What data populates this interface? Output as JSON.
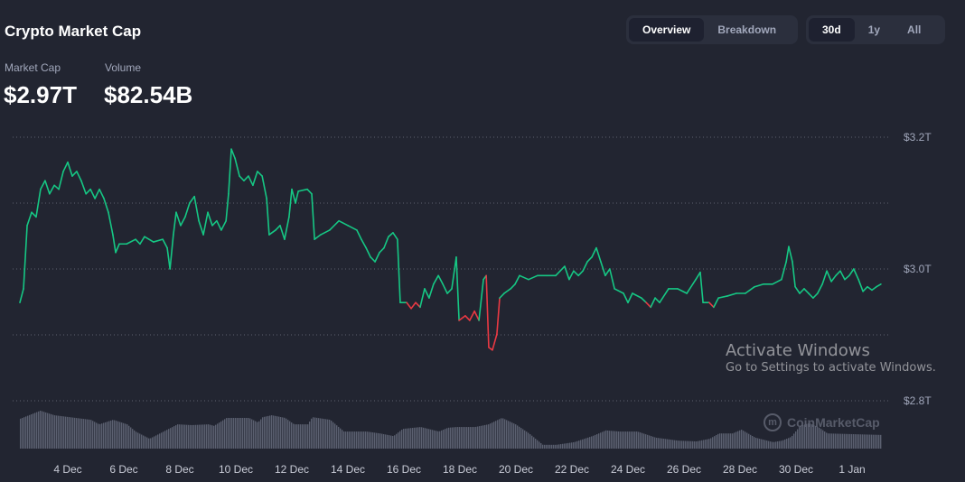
{
  "header": {
    "title": "Crypto Market Cap",
    "market_cap_label": "Market Cap",
    "market_cap_value": "$2.97T",
    "volume_label": "Volume",
    "volume_value": "$82.54B"
  },
  "view_toggle": {
    "options": [
      "Overview",
      "Breakdown"
    ],
    "selected": "Overview"
  },
  "range_toggle": {
    "options": [
      "30d",
      "1y",
      "All"
    ],
    "selected": "30d"
  },
  "watermark": "CoinMarketCap",
  "os_overlay": {
    "line1": "Activate Windows",
    "line2": "Go to Settings to activate Windows."
  },
  "colors": {
    "up": "#16c784",
    "down": "#ea3943",
    "volume": "#5b6070",
    "grid": "#5d6170",
    "background": "#222531"
  },
  "chart_data": {
    "type": "line",
    "title": "",
    "xlabel": "",
    "ylabel": "",
    "x_unit": "day of December (values above 31 are January)",
    "y_unit": "USD trillions",
    "ylim": [
      2.8,
      3.2
    ],
    "grid": true,
    "yticks": [
      {
        "value": 3.2,
        "label": "$3.2T"
      },
      {
        "value": 3.1,
        "label": ""
      },
      {
        "value": 3.0,
        "label": "$3.0T"
      },
      {
        "value": 2.9,
        "label": ""
      },
      {
        "value": 2.8,
        "label": "$2.8T"
      }
    ],
    "xticks": [
      {
        "day": 4,
        "label": "4 Dec"
      },
      {
        "day": 6,
        "label": "6 Dec"
      },
      {
        "day": 8,
        "label": "8 Dec"
      },
      {
        "day": 10,
        "label": "10 Dec"
      },
      {
        "day": 12,
        "label": "12 Dec"
      },
      {
        "day": 14,
        "label": "14 Dec"
      },
      {
        "day": 16,
        "label": "16 Dec"
      },
      {
        "day": 18,
        "label": "18 Dec"
      },
      {
        "day": 20,
        "label": "20 Dec"
      },
      {
        "day": 22,
        "label": "22 Dec"
      },
      {
        "day": 24,
        "label": "24 Dec"
      },
      {
        "day": 26,
        "label": "26 Dec"
      },
      {
        "day": 28,
        "label": "28 Dec"
      },
      {
        "day": 30,
        "label": "30 Dec"
      },
      {
        "day": 32,
        "label": "1 Jan"
      }
    ],
    "market_cap": [
      [
        2.29,
        2.949
      ],
      [
        2.42,
        2.97
      ],
      [
        2.55,
        3.066
      ],
      [
        2.71,
        3.086
      ],
      [
        2.87,
        3.079
      ],
      [
        3.03,
        3.121
      ],
      [
        3.19,
        3.134
      ],
      [
        3.35,
        3.114
      ],
      [
        3.52,
        3.127
      ],
      [
        3.68,
        3.121
      ],
      [
        3.84,
        3.148
      ],
      [
        4.0,
        3.162
      ],
      [
        4.16,
        3.141
      ],
      [
        4.32,
        3.148
      ],
      [
        4.48,
        3.134
      ],
      [
        4.65,
        3.114
      ],
      [
        4.81,
        3.121
      ],
      [
        4.97,
        3.107
      ],
      [
        5.13,
        3.121
      ],
      [
        5.29,
        3.107
      ],
      [
        5.45,
        3.086
      ],
      [
        5.61,
        3.052
      ],
      [
        5.71,
        3.025
      ],
      [
        5.84,
        3.038
      ],
      [
        6.1,
        3.038
      ],
      [
        6.42,
        3.045
      ],
      [
        6.58,
        3.038
      ],
      [
        6.74,
        3.049
      ],
      [
        7.06,
        3.041
      ],
      [
        7.39,
        3.045
      ],
      [
        7.55,
        3.032
      ],
      [
        7.65,
        3.0
      ],
      [
        7.77,
        3.052
      ],
      [
        7.87,
        3.086
      ],
      [
        8.03,
        3.066
      ],
      [
        8.19,
        3.079
      ],
      [
        8.35,
        3.1
      ],
      [
        8.52,
        3.11
      ],
      [
        8.68,
        3.073
      ],
      [
        8.84,
        3.052
      ],
      [
        9.0,
        3.086
      ],
      [
        9.16,
        3.066
      ],
      [
        9.32,
        3.073
      ],
      [
        9.48,
        3.059
      ],
      [
        9.65,
        3.073
      ],
      [
        9.74,
        3.114
      ],
      [
        9.84,
        3.182
      ],
      [
        9.97,
        3.168
      ],
      [
        10.13,
        3.141
      ],
      [
        10.29,
        3.134
      ],
      [
        10.45,
        3.141
      ],
      [
        10.61,
        3.127
      ],
      [
        10.77,
        3.148
      ],
      [
        10.94,
        3.141
      ],
      [
        11.1,
        3.107
      ],
      [
        11.19,
        3.052
      ],
      [
        11.42,
        3.059
      ],
      [
        11.58,
        3.066
      ],
      [
        11.74,
        3.045
      ],
      [
        11.9,
        3.079
      ],
      [
        12.0,
        3.121
      ],
      [
        12.13,
        3.1
      ],
      [
        12.23,
        3.118
      ],
      [
        12.55,
        3.121
      ],
      [
        12.71,
        3.114
      ],
      [
        12.81,
        3.045
      ],
      [
        13.03,
        3.052
      ],
      [
        13.35,
        3.059
      ],
      [
        13.68,
        3.073
      ],
      [
        14.0,
        3.066
      ],
      [
        14.32,
        3.059
      ],
      [
        14.48,
        3.045
      ],
      [
        14.65,
        3.032
      ],
      [
        14.81,
        3.018
      ],
      [
        14.97,
        3.011
      ],
      [
        15.13,
        3.025
      ],
      [
        15.29,
        3.032
      ],
      [
        15.45,
        3.049
      ],
      [
        15.61,
        3.055
      ],
      [
        15.77,
        3.045
      ],
      [
        15.87,
        2.949
      ],
      [
        16.1,
        2.949
      ],
      [
        16.26,
        2.94
      ],
      [
        16.42,
        2.949
      ],
      [
        16.58,
        2.942
      ],
      [
        16.74,
        2.97
      ],
      [
        16.9,
        2.956
      ],
      [
        17.06,
        2.977
      ],
      [
        17.23,
        2.99
      ],
      [
        17.39,
        2.977
      ],
      [
        17.55,
        2.963
      ],
      [
        17.71,
        2.97
      ],
      [
        17.87,
        3.018
      ],
      [
        17.97,
        2.922
      ],
      [
        18.19,
        2.929
      ],
      [
        18.35,
        2.922
      ],
      [
        18.52,
        2.936
      ],
      [
        18.68,
        2.922
      ],
      [
        18.84,
        2.984
      ],
      [
        18.94,
        2.99
      ],
      [
        19.03,
        2.881
      ],
      [
        19.16,
        2.877
      ],
      [
        19.32,
        2.901
      ],
      [
        19.42,
        2.956
      ],
      [
        19.58,
        2.963
      ],
      [
        19.81,
        2.97
      ],
      [
        19.97,
        2.977
      ],
      [
        20.13,
        2.99
      ],
      [
        20.45,
        2.984
      ],
      [
        20.77,
        2.99
      ],
      [
        21.1,
        2.99
      ],
      [
        21.42,
        2.99
      ],
      [
        21.58,
        2.997
      ],
      [
        21.74,
        3.004
      ],
      [
        21.9,
        2.984
      ],
      [
        22.06,
        2.997
      ],
      [
        22.23,
        2.99
      ],
      [
        22.39,
        2.997
      ],
      [
        22.55,
        3.011
      ],
      [
        22.71,
        3.018
      ],
      [
        22.87,
        3.032
      ],
      [
        23.03,
        3.011
      ],
      [
        23.19,
        2.99
      ],
      [
        23.35,
        3.0
      ],
      [
        23.52,
        2.97
      ],
      [
        23.84,
        2.963
      ],
      [
        24.0,
        2.949
      ],
      [
        24.16,
        2.963
      ],
      [
        24.48,
        2.956
      ],
      [
        24.65,
        2.949
      ],
      [
        24.81,
        2.942
      ],
      [
        24.97,
        2.956
      ],
      [
        25.13,
        2.949
      ],
      [
        25.45,
        2.97
      ],
      [
        25.77,
        2.97
      ],
      [
        26.1,
        2.963
      ],
      [
        26.42,
        2.984
      ],
      [
        26.58,
        2.995
      ],
      [
        26.68,
        2.949
      ],
      [
        26.9,
        2.949
      ],
      [
        27.06,
        2.942
      ],
      [
        27.23,
        2.956
      ],
      [
        27.55,
        2.959
      ],
      [
        27.87,
        2.963
      ],
      [
        28.19,
        2.963
      ],
      [
        28.52,
        2.973
      ],
      [
        28.84,
        2.977
      ],
      [
        29.16,
        2.977
      ],
      [
        29.48,
        2.984
      ],
      [
        29.65,
        3.011
      ],
      [
        29.74,
        3.034
      ],
      [
        29.87,
        3.011
      ],
      [
        29.97,
        2.973
      ],
      [
        30.13,
        2.963
      ],
      [
        30.29,
        2.97
      ],
      [
        30.45,
        2.963
      ],
      [
        30.61,
        2.956
      ],
      [
        30.77,
        2.963
      ],
      [
        30.94,
        2.977
      ],
      [
        31.1,
        2.997
      ],
      [
        31.26,
        2.981
      ],
      [
        31.42,
        2.99
      ],
      [
        31.58,
        2.997
      ],
      [
        31.74,
        2.984
      ],
      [
        31.9,
        2.99
      ],
      [
        32.06,
        3.0
      ],
      [
        32.23,
        2.984
      ],
      [
        32.39,
        2.966
      ],
      [
        32.55,
        2.973
      ],
      [
        32.71,
        2.968
      ],
      [
        32.87,
        2.973
      ],
      [
        33.03,
        2.977
      ]
    ],
    "volume_relative": [
      [
        2.29,
        0.79
      ],
      [
        3.0,
        1.0
      ],
      [
        3.5,
        0.88
      ],
      [
        4.8,
        0.76
      ],
      [
        5.1,
        0.64
      ],
      [
        5.6,
        0.76
      ],
      [
        6.1,
        0.64
      ],
      [
        6.4,
        0.45
      ],
      [
        6.9,
        0.26
      ],
      [
        7.4,
        0.45
      ],
      [
        7.9,
        0.64
      ],
      [
        8.4,
        0.62
      ],
      [
        9.0,
        0.64
      ],
      [
        9.2,
        0.6
      ],
      [
        9.65,
        0.81
      ],
      [
        10.45,
        0.81
      ],
      [
        10.77,
        0.69
      ],
      [
        10.94,
        0.83
      ],
      [
        11.26,
        0.88
      ],
      [
        11.74,
        0.81
      ],
      [
        12.06,
        0.64
      ],
      [
        12.55,
        0.64
      ],
      [
        12.71,
        0.83
      ],
      [
        13.35,
        0.76
      ],
      [
        13.84,
        0.45
      ],
      [
        14.65,
        0.45
      ],
      [
        15.13,
        0.4
      ],
      [
        15.61,
        0.33
      ],
      [
        15.94,
        0.52
      ],
      [
        16.58,
        0.57
      ],
      [
        17.23,
        0.45
      ],
      [
        17.55,
        0.55
      ],
      [
        17.87,
        0.57
      ],
      [
        18.52,
        0.57
      ],
      [
        19.0,
        0.64
      ],
      [
        19.48,
        0.81
      ],
      [
        19.97,
        0.64
      ],
      [
        20.45,
        0.4
      ],
      [
        20.94,
        0.1
      ],
      [
        21.42,
        0.1
      ],
      [
        22.06,
        0.17
      ],
      [
        22.71,
        0.33
      ],
      [
        23.19,
        0.48
      ],
      [
        23.68,
        0.45
      ],
      [
        24.32,
        0.45
      ],
      [
        24.97,
        0.29
      ],
      [
        25.77,
        0.21
      ],
      [
        26.42,
        0.19
      ],
      [
        26.9,
        0.26
      ],
      [
        27.23,
        0.4
      ],
      [
        27.71,
        0.4
      ],
      [
        28.03,
        0.5
      ],
      [
        28.52,
        0.29
      ],
      [
        29.16,
        0.17
      ],
      [
        29.48,
        0.21
      ],
      [
        29.81,
        0.31
      ],
      [
        30.13,
        0.6
      ],
      [
        30.45,
        0.67
      ],
      [
        30.77,
        0.57
      ],
      [
        31.1,
        0.4
      ],
      [
        33.03,
        0.36
      ]
    ]
  }
}
